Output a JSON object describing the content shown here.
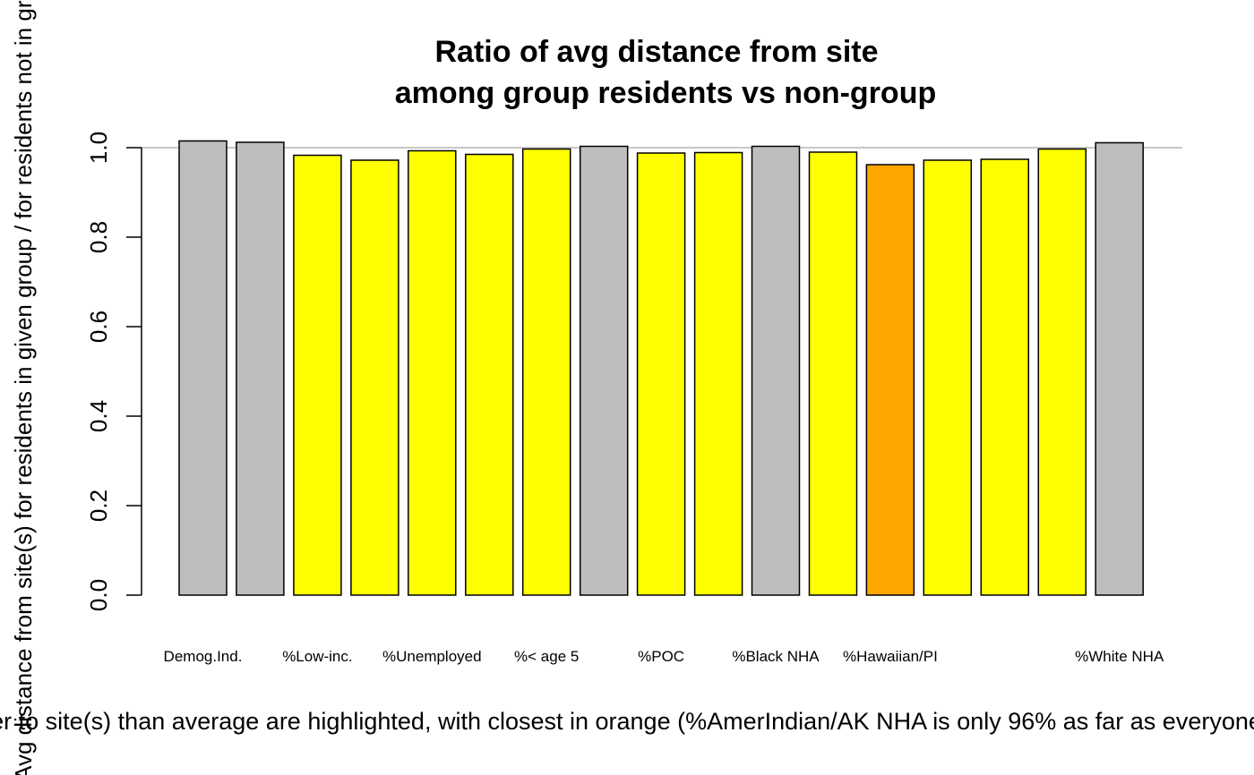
{
  "chart_data": {
    "type": "bar",
    "title_lines": [
      "Ratio of avg distance from site",
      "among group residents vs non-group"
    ],
    "ylabel": "Avg distance from site(s) for residents in given group / for residents not in group",
    "footnote": "Groups closer to site(s) than average are highlighted, with closest in orange (%AmerIndian/AK NHA is only 96% as far as everyone else)",
    "ylim": [
      0,
      1.0
    ],
    "yticks": [
      "0.0",
      "0.2",
      "0.4",
      "0.6",
      "0.8",
      "1.0"
    ],
    "reference_line": 1.0,
    "grid": false,
    "categories": [
      "Demog.Ind.",
      "",
      "%Low-inc.",
      "",
      "%Unemployed",
      "",
      "%< age 5",
      "",
      "%POC",
      "",
      "%Black NHA",
      "",
      "%Hawaiian/PI",
      "",
      "",
      "",
      "%White NHA"
    ],
    "values": [
      1.015,
      1.012,
      0.983,
      0.972,
      0.993,
      0.985,
      0.997,
      1.003,
      0.988,
      0.989,
      1.003,
      0.99,
      0.962,
      0.972,
      0.974,
      0.997,
      1.011
    ],
    "bar_colors": [
      "#bebebe",
      "#bebebe",
      "#ffff00",
      "#ffff00",
      "#ffff00",
      "#ffff00",
      "#ffff00",
      "#bebebe",
      "#ffff00",
      "#ffff00",
      "#bebebe",
      "#ffff00",
      "#ffa500",
      "#ffff00",
      "#ffff00",
      "#ffff00",
      "#bebebe"
    ],
    "colors": {
      "above_average": "#bebebe",
      "closer": "#ffff00",
      "closest": "#ffa500",
      "reference_line": "#c8c8c8"
    }
  }
}
